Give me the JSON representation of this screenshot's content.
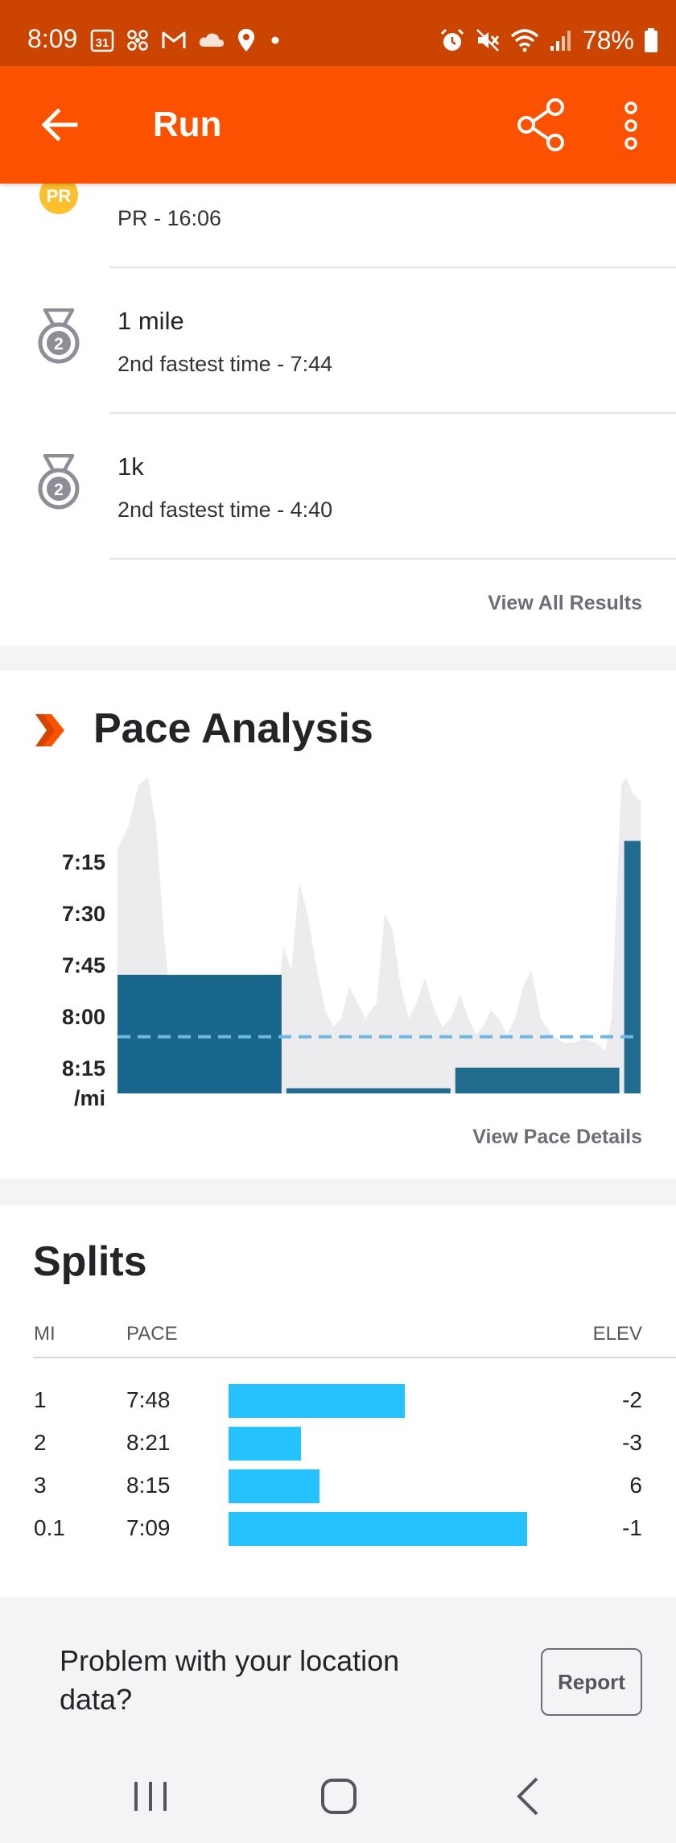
{
  "status_bar": {
    "time": "8:09",
    "calendar_day": "31",
    "battery": "78%",
    "icons_left": [
      "calendar-icon",
      "pinwheel-icon",
      "gmail-icon",
      "cloud-icon",
      "location-icon",
      "dot-icon"
    ],
    "icons_right": [
      "alarm-icon",
      "mute-icon",
      "wifi-icon",
      "signal-icon",
      "battery-icon"
    ]
  },
  "app_bar": {
    "title": "Run",
    "accent": "#fc5200"
  },
  "results": {
    "items": [
      {
        "medal": "PR",
        "title": "",
        "subtitle": "PR - 16:06"
      },
      {
        "medal": "2",
        "title": "1 mile",
        "subtitle": "2nd fastest time - 7:44"
      },
      {
        "medal": "2",
        "title": "1k",
        "subtitle": "2nd fastest time - 4:40"
      }
    ],
    "view_all_label": "View All Results"
  },
  "pace_analysis": {
    "title": "Pace Analysis",
    "view_details_label": "View Pace Details",
    "chart_data": {
      "type": "bar",
      "y_ticks": [
        "7:15",
        "7:30",
        "7:45",
        "8:00",
        "8:15"
      ],
      "y_unit": "/mi",
      "y_reversed": true,
      "average_pace": "8:06",
      "splits": [
        {
          "mile": "1",
          "pace": "7:48",
          "distance": 1
        },
        {
          "mile": "2",
          "pace": "8:21",
          "distance": 1
        },
        {
          "mile": "3",
          "pace": "8:15",
          "distance": 1
        },
        {
          "mile": "0.1",
          "pace": "7:09",
          "distance": 0.1
        }
      ],
      "colors": {
        "bar": "#0e5f86",
        "average_line": "#6fb6e0",
        "background_pace": "#ececee"
      }
    }
  },
  "splits": {
    "title": "Splits",
    "col_mi": "MI",
    "col_pace": "PACE",
    "col_elev": "ELEV",
    "rows": [
      {
        "mi": "1",
        "pace": "7:48",
        "elev": "-2",
        "pace_seconds": 468
      },
      {
        "mi": "2",
        "pace": "8:21",
        "elev": "-3",
        "pace_seconds": 501
      },
      {
        "mi": "3",
        "pace": "8:15",
        "elev": "6",
        "pace_seconds": 495
      },
      {
        "mi": "0.1",
        "pace": "7:09",
        "elev": "-1",
        "pace_seconds": 429
      }
    ],
    "bar_color": "#26c2ff"
  },
  "location_problem": {
    "message": "Problem with your location data?",
    "report_label": "Report"
  },
  "nav_bar": {
    "items": [
      "recents-icon",
      "home-icon",
      "back-nav-icon"
    ]
  }
}
